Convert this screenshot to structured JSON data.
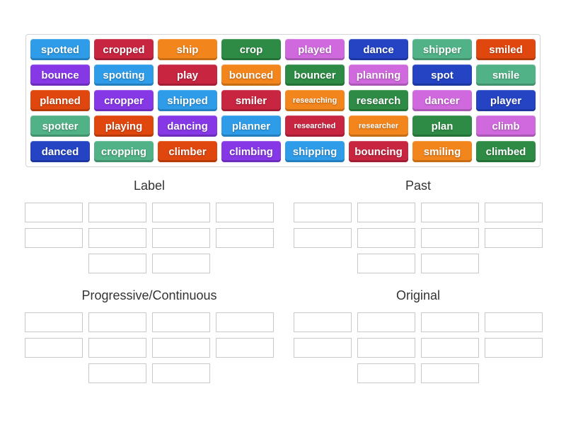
{
  "colors": {
    "blue": "#2e9ce8",
    "crimson": "#c72540",
    "orange": "#f2851c",
    "green": "#2e8b45",
    "orchid": "#cf69dd",
    "royal": "#2444c4",
    "seagreen": "#50b286",
    "vermillion": "#e0470e",
    "purple": "#8638e6"
  },
  "board": {
    "rows": [
      [
        {
          "word": "spotted",
          "color": "blue"
        },
        {
          "word": "cropped",
          "color": "crimson"
        },
        {
          "word": "ship",
          "color": "orange"
        },
        {
          "word": "crop",
          "color": "green"
        },
        {
          "word": "played",
          "color": "orchid"
        },
        {
          "word": "dance",
          "color": "royal"
        },
        {
          "word": "shipper",
          "color": "seagreen"
        },
        {
          "word": "smiled",
          "color": "vermillion"
        }
      ],
      [
        {
          "word": "bounce",
          "color": "purple"
        },
        {
          "word": "spotting",
          "color": "blue"
        },
        {
          "word": "play",
          "color": "crimson"
        },
        {
          "word": "bounced",
          "color": "orange"
        },
        {
          "word": "bouncer",
          "color": "green"
        },
        {
          "word": "planning",
          "color": "orchid"
        },
        {
          "word": "spot",
          "color": "royal"
        },
        {
          "word": "smile",
          "color": "seagreen"
        }
      ],
      [
        {
          "word": "planned",
          "color": "vermillion"
        },
        {
          "word": "cropper",
          "color": "purple"
        },
        {
          "word": "shipped",
          "color": "blue"
        },
        {
          "word": "smiler",
          "color": "crimson"
        },
        {
          "word": "researching",
          "color": "orange"
        },
        {
          "word": "research",
          "color": "green"
        },
        {
          "word": "dancer",
          "color": "orchid"
        },
        {
          "word": "player",
          "color": "royal"
        }
      ],
      [
        {
          "word": "spotter",
          "color": "seagreen"
        },
        {
          "word": "playing",
          "color": "vermillion"
        },
        {
          "word": "dancing",
          "color": "purple"
        },
        {
          "word": "planner",
          "color": "blue"
        },
        {
          "word": "researched",
          "color": "crimson"
        },
        {
          "word": "researcher",
          "color": "orange"
        },
        {
          "word": "plan",
          "color": "green"
        },
        {
          "word": "climb",
          "color": "orchid"
        }
      ],
      [
        {
          "word": "danced",
          "color": "royal"
        },
        {
          "word": "cropping",
          "color": "seagreen"
        },
        {
          "word": "climber",
          "color": "vermillion"
        },
        {
          "word": "climbing",
          "color": "purple"
        },
        {
          "word": "shipping",
          "color": "blue"
        },
        {
          "word": "bouncing",
          "color": "crimson"
        },
        {
          "word": "smiling",
          "color": "orange"
        },
        {
          "word": "climbed",
          "color": "green"
        }
      ]
    ]
  },
  "groups": [
    {
      "title": "Label",
      "position": "pos-tl",
      "slot_rows": [
        4,
        4,
        2
      ]
    },
    {
      "title": "Past",
      "position": "pos-tr",
      "slot_rows": [
        4,
        4,
        2
      ]
    },
    {
      "title": "Progressive/Continuous",
      "position": "pos-bl",
      "slot_rows": [
        4,
        4,
        2
      ]
    },
    {
      "title": "Original",
      "position": "pos-br",
      "slot_rows": [
        4,
        4,
        2
      ]
    }
  ]
}
